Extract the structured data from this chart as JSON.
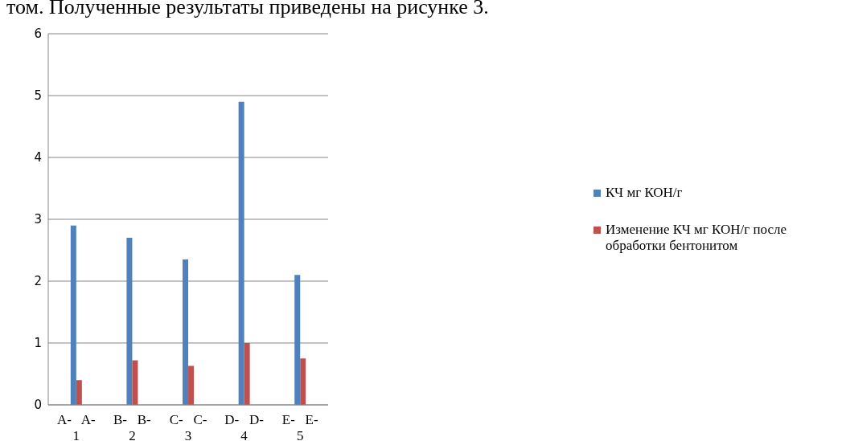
{
  "chart_data": {
    "type": "bar",
    "annotations": [
      "том. Полученные результаты приведены на рисунке 3."
    ],
    "categories": [
      "A-   A-\n1",
      "B-   B-\n2",
      "C-   C-\n3",
      "D-   D-\n4",
      "E-   E-\n5"
    ],
    "series": [
      {
        "name": "КЧ мг КОН/г",
        "color": "#4f81bd",
        "values": [
          2.9,
          2.7,
          2.35,
          4.9,
          2.1
        ]
      },
      {
        "name": "Изменение КЧ мг КОН/г после обработки бентонитом",
        "color": "#c0504d",
        "values": [
          0.4,
          0.72,
          0.63,
          1.0,
          0.75
        ]
      }
    ],
    "ylim": [
      0,
      6
    ],
    "yticks": [
      0,
      1,
      2,
      3,
      4,
      5,
      6
    ],
    "grid": "y",
    "legend": "right"
  }
}
